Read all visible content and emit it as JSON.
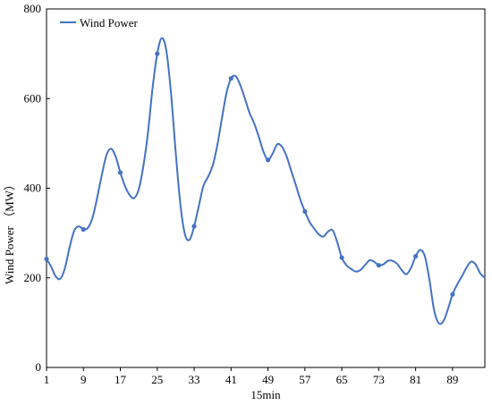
{
  "chart_data": {
    "type": "line",
    "xlabel": "15min",
    "ylabel": "Wind Power  （MW）",
    "xlim": [
      1,
      96
    ],
    "ylim": [
      0,
      800
    ],
    "xticks": [
      "1",
      "9",
      "17",
      "25",
      "33",
      "41",
      "49",
      "57",
      "65",
      "73",
      "81",
      "89"
    ],
    "yticks": [
      "0",
      "200",
      "400",
      "600",
      "800"
    ],
    "legend_position": "top-left",
    "grid": false,
    "series": [
      {
        "name": "Wind Power",
        "color": "#4472C4",
        "marker_every": 8,
        "x": [
          1,
          2,
          3,
          4,
          5,
          6,
          7,
          8,
          9,
          10,
          11,
          12,
          13,
          14,
          15,
          16,
          17,
          18,
          19,
          20,
          21,
          22,
          23,
          24,
          25,
          26,
          27,
          28,
          29,
          30,
          31,
          32,
          33,
          34,
          35,
          36,
          37,
          38,
          39,
          40,
          41,
          42,
          43,
          44,
          45,
          46,
          47,
          48,
          49,
          50,
          51,
          52,
          53,
          54,
          55,
          56,
          57,
          58,
          59,
          60,
          61,
          62,
          63,
          64,
          65,
          66,
          67,
          68,
          69,
          70,
          71,
          72,
          73,
          74,
          75,
          76,
          77,
          78,
          79,
          80,
          81,
          82,
          83,
          84,
          85,
          86,
          87,
          88,
          89,
          90,
          91,
          92,
          93,
          94,
          95,
          96
        ],
        "values": [
          242,
          225,
          203,
          198,
          222,
          268,
          305,
          315,
          308,
          312,
          335,
          380,
          430,
          474,
          488,
          470,
          435,
          405,
          385,
          378,
          398,
          450,
          525,
          625,
          700,
          735,
          705,
          610,
          480,
          365,
          297,
          285,
          315,
          360,
          405,
          425,
          450,
          495,
          555,
          612,
          645,
          650,
          630,
          600,
          568,
          545,
          515,
          482,
          463,
          477,
          498,
          493,
          472,
          440,
          408,
          375,
          348,
          325,
          310,
          297,
          292,
          303,
          306,
          280,
          245,
          228,
          220,
          214,
          217,
          228,
          239,
          236,
          228,
          230,
          238,
          238,
          231,
          217,
          208,
          222,
          248,
          262,
          248,
          195,
          128,
          99,
          103,
          130,
          163,
          185,
          203,
          222,
          236,
          230,
          210,
          200
        ]
      }
    ]
  }
}
